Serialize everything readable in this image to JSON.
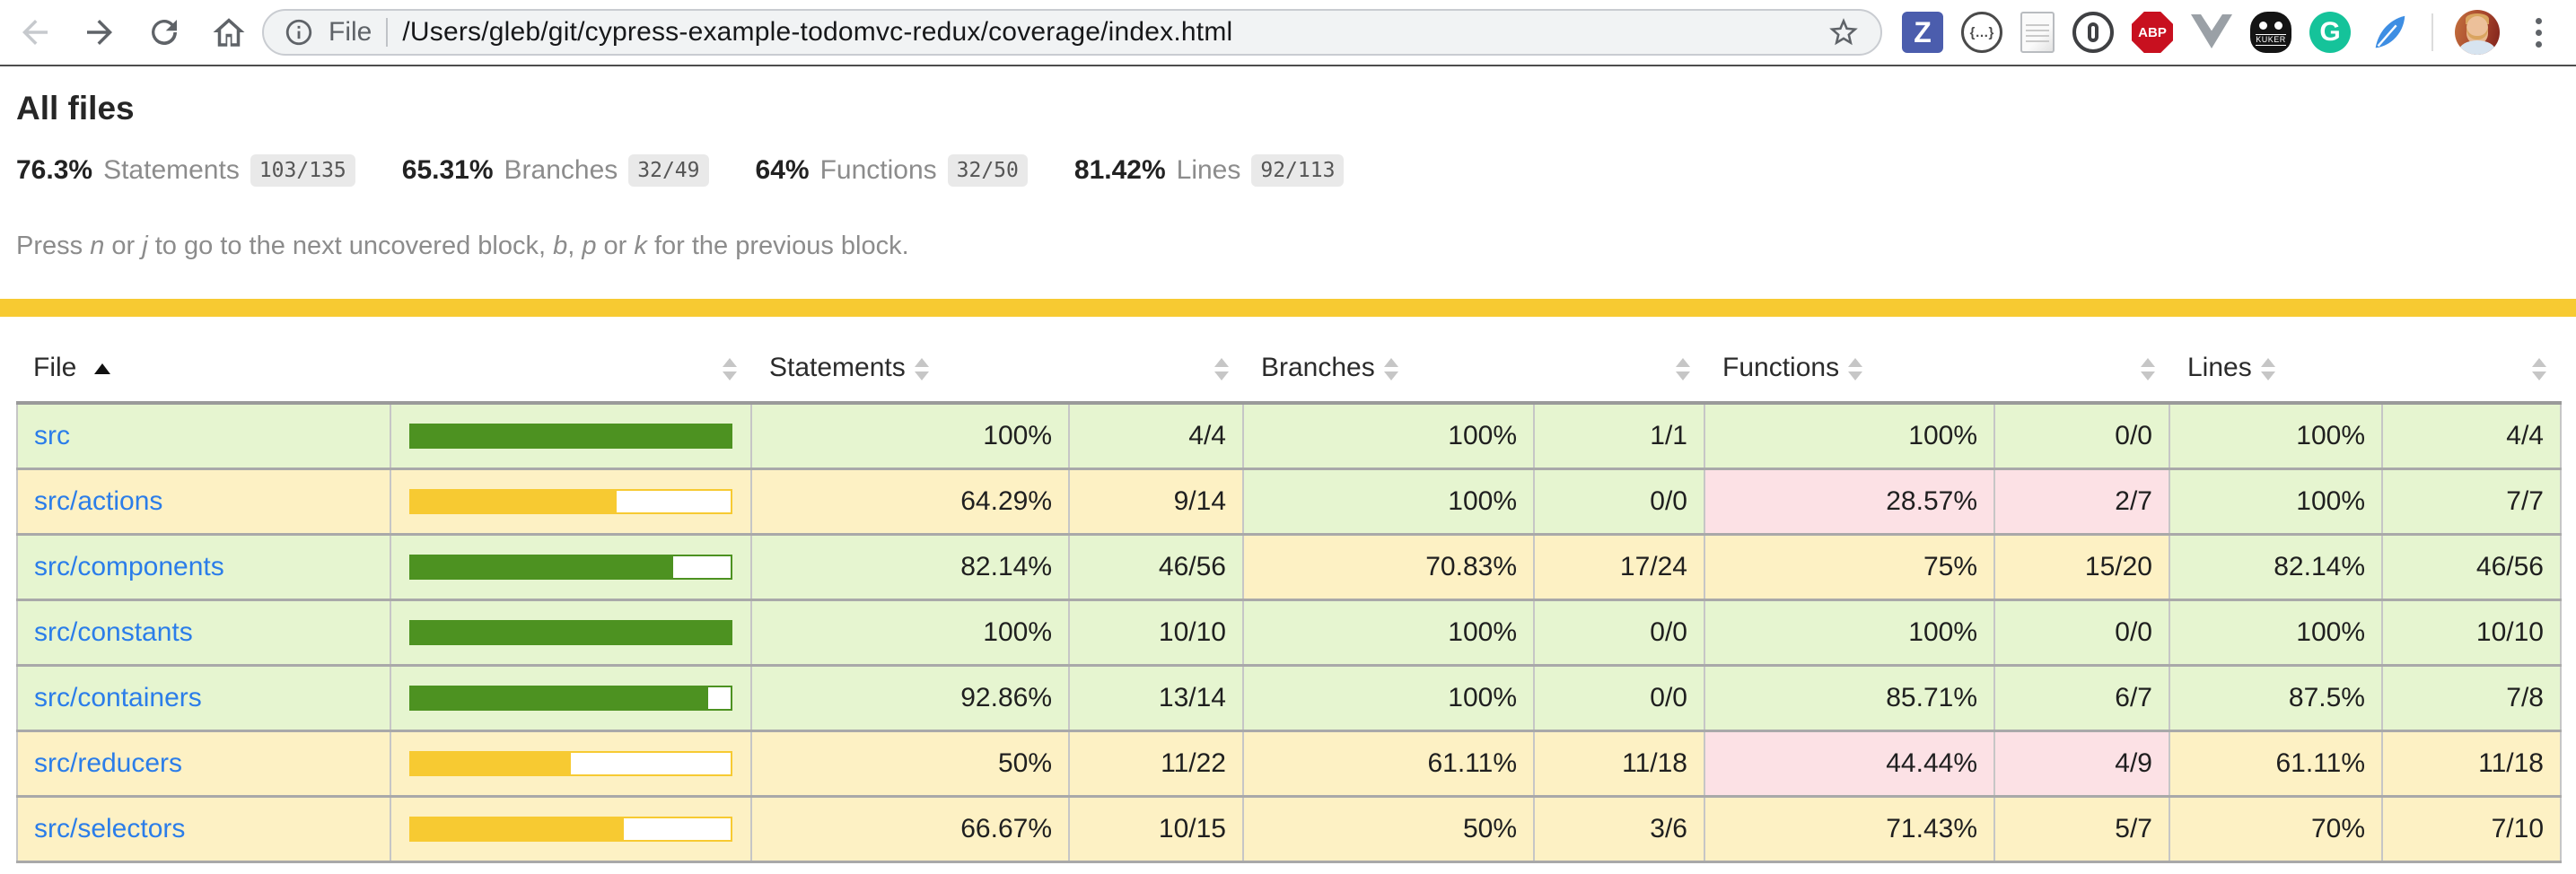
{
  "browser": {
    "address": {
      "scheme_label": "File",
      "url": "/Users/gleb/git/cypress-example-todomvc-redux/coverage/index.html"
    },
    "extensions": {
      "zotero_label": "Z",
      "json_viewer_label": "{…}",
      "abp_label": "ABP",
      "kuker_label": "KUKER",
      "grammarly_label": "G"
    }
  },
  "page": {
    "title": "All files",
    "summary": [
      {
        "pct": "76.3%",
        "label": "Statements",
        "fraction": "103/135"
      },
      {
        "pct": "65.31%",
        "label": "Branches",
        "fraction": "32/49"
      },
      {
        "pct": "64%",
        "label": "Functions",
        "fraction": "32/50"
      },
      {
        "pct": "81.42%",
        "label": "Lines",
        "fraction": "92/113"
      }
    ],
    "hint": {
      "p1": "Press ",
      "k1": "n",
      "p2": " or ",
      "k2": "j",
      "p3": " to go to the next uncovered block, ",
      "k3": "b",
      "p4": ", ",
      "k4": "p",
      "p5": " or ",
      "k5": "k",
      "p6": " for the previous block."
    }
  },
  "table": {
    "headers": {
      "file": "File",
      "statements": "Statements",
      "branches": "Branches",
      "functions": "Functions",
      "lines": "Lines"
    },
    "rows": [
      {
        "name": "src",
        "level": "high",
        "bar_pct": 100,
        "bar_color": "green",
        "cells": [
          {
            "text": "100%",
            "level": "high"
          },
          {
            "text": "4/4",
            "level": "high"
          },
          {
            "text": "100%",
            "level": "high"
          },
          {
            "text": "1/1",
            "level": "high"
          },
          {
            "text": "100%",
            "level": "high"
          },
          {
            "text": "0/0",
            "level": "high"
          },
          {
            "text": "100%",
            "level": "high"
          },
          {
            "text": "4/4",
            "level": "high"
          }
        ]
      },
      {
        "name": "src/actions",
        "level": "medium",
        "bar_pct": 64.29,
        "bar_color": "yellow",
        "cells": [
          {
            "text": "64.29%",
            "level": "medium"
          },
          {
            "text": "9/14",
            "level": "medium"
          },
          {
            "text": "100%",
            "level": "high"
          },
          {
            "text": "0/0",
            "level": "high"
          },
          {
            "text": "28.57%",
            "level": "low"
          },
          {
            "text": "2/7",
            "level": "low"
          },
          {
            "text": "100%",
            "level": "high"
          },
          {
            "text": "7/7",
            "level": "high"
          }
        ]
      },
      {
        "name": "src/components",
        "level": "high",
        "bar_pct": 82.14,
        "bar_color": "green",
        "cells": [
          {
            "text": "82.14%",
            "level": "high"
          },
          {
            "text": "46/56",
            "level": "high"
          },
          {
            "text": "70.83%",
            "level": "medium"
          },
          {
            "text": "17/24",
            "level": "medium"
          },
          {
            "text": "75%",
            "level": "medium"
          },
          {
            "text": "15/20",
            "level": "medium"
          },
          {
            "text": "82.14%",
            "level": "high"
          },
          {
            "text": "46/56",
            "level": "high"
          }
        ]
      },
      {
        "name": "src/constants",
        "level": "high",
        "bar_pct": 100,
        "bar_color": "green",
        "cells": [
          {
            "text": "100%",
            "level": "high"
          },
          {
            "text": "10/10",
            "level": "high"
          },
          {
            "text": "100%",
            "level": "high"
          },
          {
            "text": "0/0",
            "level": "high"
          },
          {
            "text": "100%",
            "level": "high"
          },
          {
            "text": "0/0",
            "level": "high"
          },
          {
            "text": "100%",
            "level": "high"
          },
          {
            "text": "10/10",
            "level": "high"
          }
        ]
      },
      {
        "name": "src/containers",
        "level": "high",
        "bar_pct": 92.86,
        "bar_color": "green",
        "cells": [
          {
            "text": "92.86%",
            "level": "high"
          },
          {
            "text": "13/14",
            "level": "high"
          },
          {
            "text": "100%",
            "level": "high"
          },
          {
            "text": "0/0",
            "level": "high"
          },
          {
            "text": "85.71%",
            "level": "high"
          },
          {
            "text": "6/7",
            "level": "high"
          },
          {
            "text": "87.5%",
            "level": "high"
          },
          {
            "text": "7/8",
            "level": "high"
          }
        ]
      },
      {
        "name": "src/reducers",
        "level": "medium",
        "bar_pct": 50,
        "bar_color": "yellow",
        "cells": [
          {
            "text": "50%",
            "level": "medium"
          },
          {
            "text": "11/22",
            "level": "medium"
          },
          {
            "text": "61.11%",
            "level": "medium"
          },
          {
            "text": "11/18",
            "level": "medium"
          },
          {
            "text": "44.44%",
            "level": "low"
          },
          {
            "text": "4/9",
            "level": "low"
          },
          {
            "text": "61.11%",
            "level": "medium"
          },
          {
            "text": "11/18",
            "level": "medium"
          }
        ]
      },
      {
        "name": "src/selectors",
        "level": "medium",
        "bar_pct": 66.67,
        "bar_color": "yellow",
        "cells": [
          {
            "text": "66.67%",
            "level": "medium"
          },
          {
            "text": "10/15",
            "level": "medium"
          },
          {
            "text": "50%",
            "level": "medium"
          },
          {
            "text": "3/6",
            "level": "medium"
          },
          {
            "text": "71.43%",
            "level": "medium"
          },
          {
            "text": "5/7",
            "level": "medium"
          },
          {
            "text": "70%",
            "level": "medium"
          },
          {
            "text": "7/10",
            "level": "medium"
          }
        ]
      }
    ]
  },
  "colors": {
    "high_bg": "#e6f5d0",
    "medium_bg": "#fdf1c4",
    "low_bg": "#fce1e5",
    "bar_green": "#4d9221",
    "bar_yellow": "#f7ca32",
    "banner": "#f7ca32",
    "link": "#2b7de9"
  }
}
